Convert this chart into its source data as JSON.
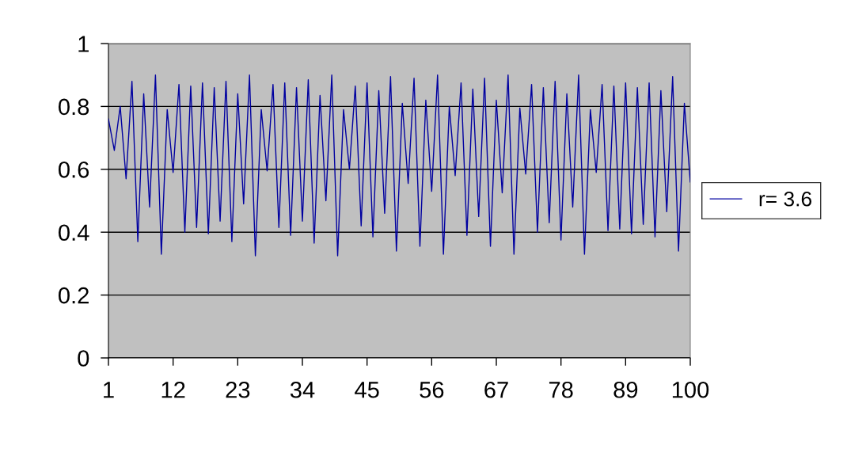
{
  "chart_data": {
    "type": "line",
    "categories": [
      "1",
      null,
      null,
      null,
      null,
      null,
      null,
      null,
      null,
      null,
      null,
      "12",
      null,
      null,
      null,
      null,
      null,
      null,
      null,
      null,
      null,
      null,
      "23",
      null,
      null,
      null,
      null,
      null,
      null,
      null,
      null,
      null,
      null,
      "34",
      null,
      null,
      null,
      null,
      null,
      null,
      null,
      null,
      null,
      null,
      "45",
      null,
      null,
      null,
      null,
      null,
      null,
      null,
      null,
      null,
      null,
      "56",
      null,
      null,
      null,
      null,
      null,
      null,
      null,
      null,
      null,
      null,
      "67",
      null,
      null,
      null,
      null,
      null,
      null,
      null,
      null,
      null,
      null,
      "78",
      null,
      null,
      null,
      null,
      null,
      null,
      null,
      null,
      null,
      null,
      "89",
      null,
      null,
      null,
      null,
      null,
      null,
      null,
      null,
      null,
      null,
      "100"
    ],
    "series": [
      {
        "name": "r= 3.6",
        "color": "#0000a0",
        "values": [
          0.76,
          0.66,
          0.8,
          0.57,
          0.88,
          0.37,
          0.84,
          0.48,
          0.9,
          0.33,
          0.79,
          0.59,
          0.87,
          0.4,
          0.865,
          0.415,
          0.875,
          0.395,
          0.86,
          0.435,
          0.88,
          0.37,
          0.84,
          0.49,
          0.9,
          0.325,
          0.79,
          0.595,
          0.87,
          0.415,
          0.875,
          0.39,
          0.86,
          0.435,
          0.885,
          0.365,
          0.835,
          0.5,
          0.9,
          0.325,
          0.79,
          0.6,
          0.865,
          0.42,
          0.875,
          0.385,
          0.85,
          0.46,
          0.895,
          0.34,
          0.81,
          0.555,
          0.89,
          0.355,
          0.82,
          0.53,
          0.9,
          0.33,
          0.8,
          0.58,
          0.875,
          0.39,
          0.855,
          0.45,
          0.89,
          0.355,
          0.82,
          0.525,
          0.9,
          0.33,
          0.795,
          0.585,
          0.87,
          0.4,
          0.86,
          0.43,
          0.88,
          0.375,
          0.84,
          0.48,
          0.9,
          0.33,
          0.79,
          0.59,
          0.87,
          0.405,
          0.865,
          0.41,
          0.875,
          0.395,
          0.86,
          0.425,
          0.875,
          0.385,
          0.85,
          0.465,
          0.895,
          0.34,
          0.81,
          0.56
        ]
      }
    ],
    "ylim": [
      0,
      1
    ],
    "yticks": [
      0,
      0.2,
      0.4,
      0.6,
      0.8,
      1
    ],
    "grid": "y",
    "legend": "right",
    "marker": "none",
    "line_style": "solid"
  }
}
